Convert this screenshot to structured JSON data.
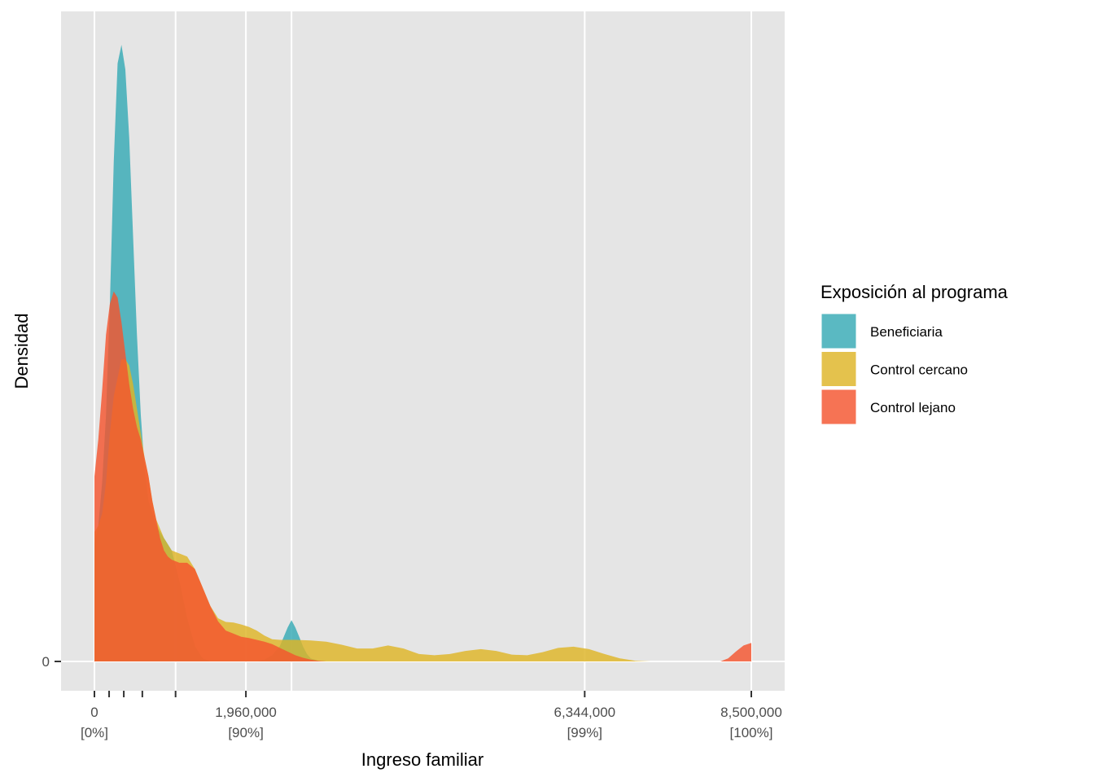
{
  "chart_data": {
    "type": "area",
    "subtype": "density",
    "xlabel": "Ingreso familiar",
    "ylabel": "Densidad",
    "xlim": [
      0,
      8500000
    ],
    "grid": true,
    "x_ticks": [
      {
        "value": 0,
        "label": "0",
        "sublabel": "[0%]"
      },
      {
        "value": 1960000,
        "label": "1,960,000",
        "sublabel": "[90%]"
      },
      {
        "value": 6344000,
        "label": "6,344,000",
        "sublabel": "[99%]"
      },
      {
        "value": 8500000,
        "label": "8,500,000",
        "sublabel": "[100%]"
      }
    ],
    "x_minor_gridlines": [
      1050000,
      2550000
    ],
    "x_rug_ticks": [
      0,
      190000,
      380000,
      620000,
      1050000
    ],
    "y_ticks": [
      {
        "value": 0,
        "label": "0"
      }
    ],
    "legend": {
      "title": "Exposición al programa",
      "position": "right"
    },
    "series": [
      {
        "name": "Beneficiaria",
        "color": "#36A9B5",
        "x": [
          0,
          50000,
          100000,
          150000,
          200000,
          250000,
          300000,
          350000,
          400000,
          450000,
          500000,
          550000,
          600000,
          650000,
          700000,
          750000,
          800000,
          900000,
          1000000,
          1100000,
          1200000,
          1300000,
          1400000,
          1500000,
          1600000,
          1700000,
          1800000,
          1900000,
          2000000,
          2100000,
          2200000,
          2300000,
          2400000,
          2450000,
          2500000,
          2550000,
          2600000,
          2650000,
          2700000,
          2750000,
          2800000,
          2900000,
          3000000,
          8500000
        ],
        "y": [
          0.19,
          0.22,
          0.29,
          0.4,
          0.58,
          0.81,
          0.97,
          1.0,
          0.96,
          0.85,
          0.69,
          0.53,
          0.4,
          0.31,
          0.26,
          0.24,
          0.22,
          0.2,
          0.18,
          0.13,
          0.07,
          0.025,
          0.005,
          0,
          0,
          0,
          0,
          0,
          0,
          0,
          0.003,
          0.01,
          0.025,
          0.04,
          0.055,
          0.067,
          0.055,
          0.04,
          0.024,
          0.012,
          0.005,
          0.001,
          0,
          0
        ]
      },
      {
        "name": "Control cercano",
        "color": "#DEB426",
        "x": [
          0,
          50000,
          100000,
          150000,
          200000,
          250000,
          300000,
          350000,
          400000,
          450000,
          500000,
          550000,
          600000,
          650000,
          700000,
          750000,
          800000,
          900000,
          1000000,
          1100000,
          1200000,
          1300000,
          1400000,
          1500000,
          1600000,
          1700000,
          1800000,
          1900000,
          2000000,
          2100000,
          2200000,
          2300000,
          2400000,
          2600000,
          2800000,
          3000000,
          3200000,
          3400000,
          3600000,
          3800000,
          4000000,
          4200000,
          4400000,
          4600000,
          4800000,
          5000000,
          5200000,
          5400000,
          5600000,
          5800000,
          6000000,
          6200000,
          6400000,
          6600000,
          6800000,
          7000000,
          7200000,
          7400000,
          7600000,
          7800000,
          8000000,
          8200000,
          8500000
        ],
        "y": [
          0.21,
          0.22,
          0.24,
          0.29,
          0.37,
          0.43,
          0.46,
          0.49,
          0.49,
          0.48,
          0.45,
          0.41,
          0.37,
          0.33,
          0.3,
          0.26,
          0.23,
          0.2,
          0.18,
          0.175,
          0.17,
          0.15,
          0.12,
          0.09,
          0.07,
          0.064,
          0.063,
          0.06,
          0.056,
          0.05,
          0.042,
          0.036,
          0.035,
          0.035,
          0.034,
          0.032,
          0.027,
          0.021,
          0.021,
          0.026,
          0.021,
          0.012,
          0.01,
          0.012,
          0.017,
          0.02,
          0.017,
          0.011,
          0.01,
          0.015,
          0.022,
          0.024,
          0.02,
          0.012,
          0.005,
          0.001,
          0,
          0,
          0,
          0,
          0,
          0,
          0
        ]
      },
      {
        "name": "Control lejano",
        "color": "#F4542E",
        "x": [
          0,
          50000,
          100000,
          150000,
          200000,
          250000,
          300000,
          350000,
          400000,
          450000,
          500000,
          550000,
          600000,
          650000,
          700000,
          750000,
          800000,
          850000,
          900000,
          950000,
          1000000,
          1100000,
          1200000,
          1300000,
          1400000,
          1500000,
          1600000,
          1700000,
          1800000,
          1900000,
          2000000,
          2100000,
          2200000,
          2300000,
          2400000,
          2500000,
          2600000,
          2700000,
          2800000,
          2900000,
          3000000,
          3100000,
          3200000,
          3300000,
          3400000,
          8100000,
          8200000,
          8300000,
          8400000,
          8500000
        ],
        "y": [
          0.3,
          0.36,
          0.44,
          0.53,
          0.58,
          0.6,
          0.59,
          0.55,
          0.5,
          0.45,
          0.41,
          0.38,
          0.36,
          0.33,
          0.3,
          0.26,
          0.23,
          0.2,
          0.18,
          0.17,
          0.165,
          0.16,
          0.16,
          0.15,
          0.12,
          0.09,
          0.065,
          0.05,
          0.045,
          0.04,
          0.038,
          0.035,
          0.032,
          0.028,
          0.022,
          0.016,
          0.01,
          0.006,
          0.003,
          0.001,
          0,
          0,
          0,
          0,
          0,
          0,
          0.005,
          0.016,
          0.026,
          0.03
        ]
      }
    ]
  }
}
